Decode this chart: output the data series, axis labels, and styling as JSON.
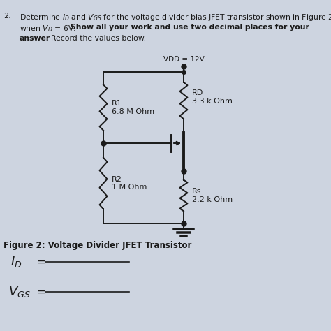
{
  "vdd_label": "VDD = 12V",
  "r1_label": "R1\n6.8 M Ohm",
  "r2_label": "R2\n1 M Ohm",
  "rd_label": "RD\n3.3 k Ohm",
  "rs_label": "Rs\n2.2 k Ohm",
  "figure_caption": "Figure 2: Voltage Divider JFET Transistor",
  "bg_color": "#cdd4e0",
  "line_color": "#1a1a1a",
  "title_line1": "2.   Determine I",
  "title_line1b": "D",
  "title_line1c": " and V",
  "title_line1d": "GS",
  "title_line1e": " for the voltage divider bias JFET transistor shown in Figure 2",
  "title_line2a": "when V",
  "title_line2b": "D",
  "title_line2c": " = 6V. ",
  "title_line2d": "Show all your work and use two decimal places for your",
  "title_line3a": "answer",
  "title_line3b": ". Record the values below."
}
